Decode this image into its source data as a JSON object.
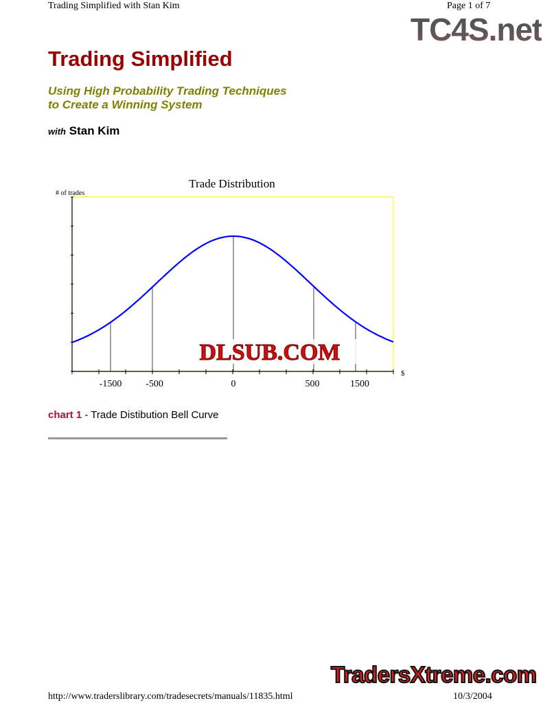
{
  "header": {
    "left": "Trading Simplified with Stan Kim",
    "right": "Page 1 of 7",
    "logo": "TC4S.net"
  },
  "title": "Trading Simplified",
  "subtitle": [
    "Using High Probability Trading Techniques",
    "to Create a Winning System"
  ],
  "byline": {
    "with": "with",
    "name": "Stan Kim"
  },
  "chart_data": {
    "type": "line",
    "title": "Trade Distribution",
    "ylabel": "# of trades",
    "xlabel": "$",
    "x_tick_labels": [
      "-1500",
      "-500",
      "0",
      "500",
      "1500"
    ],
    "series_color": "#0000ff",
    "plot_border_color": "#ffff00",
    "shape": "bell curve",
    "watermark": "DLSUB.COM"
  },
  "caption": {
    "number": "chart 1",
    "text": " - Trade Distibution Bell Curve"
  },
  "footer": {
    "url": "http://www.traderslibrary.com/tradesecrets/manuals/11835.html",
    "date": "10/3/2004",
    "logo": "TradersXtreme.com"
  }
}
